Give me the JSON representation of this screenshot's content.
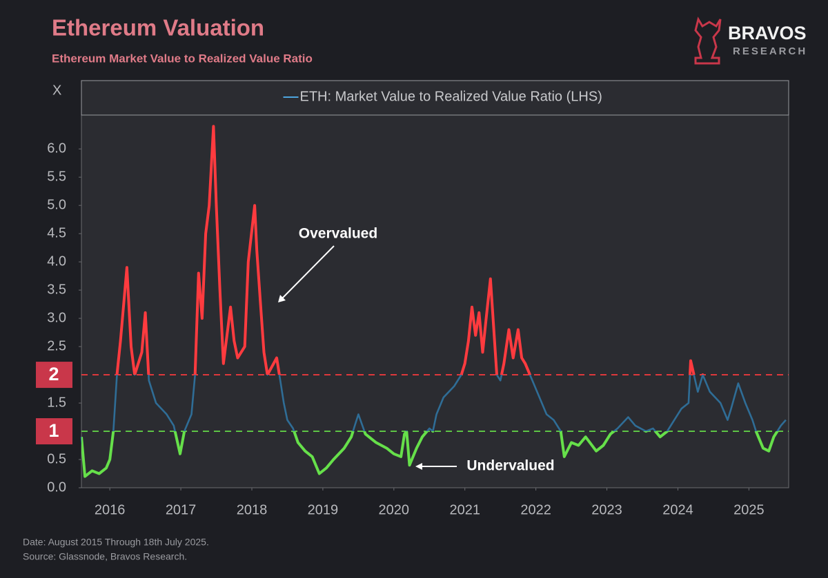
{
  "chart_data": {
    "type": "line",
    "title": "Ethereum Valuation",
    "subtitle": "Ethereum Market Value to Realized Value Ratio",
    "y_axis_label": "X",
    "logo": {
      "name": "BRAVOS",
      "sub": "RESEARCH"
    },
    "notes": [
      "Date: August 2015 Through 18th July 2025.",
      "Source: Glassnode, Bravos Research."
    ],
    "annotations": [
      "Overvalued",
      "Undervalued"
    ],
    "reference_lines": [
      {
        "value": 2,
        "color": "#ff3b3f"
      },
      {
        "value": 1,
        "color": "#66e04a"
      }
    ],
    "xlim": [
      2015.6,
      2025.56
    ],
    "xticks": [
      2016,
      2017,
      2018,
      2019,
      2020,
      2021,
      2022,
      2023,
      2024,
      2025
    ],
    "ylim": [
      0,
      6.6
    ],
    "yticks": [
      {
        "value": 0,
        "label": "0.0"
      },
      0.5,
      1.5,
      2.5,
      {
        "value": 3,
        "label": "3.0"
      },
      3.5,
      {
        "value": 4,
        "label": "4.0"
      },
      4.5,
      {
        "value": 5,
        "label": "5.0"
      },
      5.5,
      {
        "value": 6,
        "label": "6.0"
      }
    ],
    "x": [
      2015.6,
      2015.65,
      2015.75,
      2015.85,
      2015.95,
      2016.0,
      2016.05,
      2016.1,
      2016.15,
      2016.24,
      2016.3,
      2016.35,
      2016.45,
      2016.5,
      2016.55,
      2016.65,
      2016.8,
      2016.9,
      2016.99,
      2017.05,
      2017.15,
      2017.2,
      2017.25,
      2017.3,
      2017.35,
      2017.4,
      2017.46,
      2017.5,
      2017.55,
      2017.6,
      2017.7,
      2017.75,
      2017.8,
      2017.9,
      2017.95,
      2018.04,
      2018.07,
      2018.12,
      2018.17,
      2018.22,
      2018.35,
      2018.4,
      2018.45,
      2018.5,
      2018.58,
      2018.65,
      2018.75,
      2018.85,
      2018.95,
      2019.05,
      2019.15,
      2019.3,
      2019.4,
      2019.45,
      2019.5,
      2019.6,
      2019.75,
      2019.9,
      2020.0,
      2020.1,
      2020.15,
      2020.18,
      2020.22,
      2020.32,
      2020.4,
      2020.5,
      2020.55,
      2020.6,
      2020.7,
      2020.85,
      2020.95,
      2021.0,
      2021.05,
      2021.1,
      2021.15,
      2021.2,
      2021.25,
      2021.3,
      2021.36,
      2021.45,
      2021.5,
      2021.55,
      2021.62,
      2021.68,
      2021.75,
      2021.8,
      2021.85,
      2021.95,
      2022.05,
      2022.15,
      2022.25,
      2022.35,
      2022.4,
      2022.5,
      2022.6,
      2022.7,
      2022.85,
      2022.95,
      2023.05,
      2023.15,
      2023.3,
      2023.4,
      2023.55,
      2023.65,
      2023.75,
      2023.85,
      2023.95,
      2024.05,
      2024.15,
      2024.18,
      2024.28,
      2024.35,
      2024.45,
      2024.6,
      2024.7,
      2024.75,
      2024.85,
      2024.95,
      2025.05,
      2025.1,
      2025.2,
      2025.28,
      2025.35,
      2025.45,
      2025.52
    ],
    "series": [
      {
        "name": "ETH: Market Value to Realized Value Ratio (LHS)",
        "color": "#2f6d96",
        "values": [
          0.9,
          0.2,
          0.3,
          0.25,
          0.35,
          0.5,
          1.0,
          2.0,
          2.6,
          3.9,
          2.5,
          2.0,
          2.4,
          3.1,
          1.9,
          1.5,
          1.3,
          1.1,
          0.6,
          1.0,
          1.3,
          2.0,
          3.8,
          3.0,
          4.5,
          5.0,
          6.4,
          5.0,
          3.5,
          2.2,
          3.2,
          2.6,
          2.3,
          2.5,
          4.0,
          5.0,
          4.2,
          3.3,
          2.4,
          2.0,
          2.3,
          1.9,
          1.5,
          1.2,
          1.05,
          0.8,
          0.65,
          0.55,
          0.25,
          0.35,
          0.5,
          0.7,
          0.9,
          1.1,
          1.3,
          0.95,
          0.8,
          0.7,
          0.6,
          0.55,
          0.95,
          1.0,
          0.4,
          0.7,
          0.9,
          1.05,
          1.0,
          1.3,
          1.6,
          1.8,
          2.0,
          2.2,
          2.6,
          3.2,
          2.7,
          3.1,
          2.4,
          3.0,
          3.7,
          2.0,
          1.9,
          2.2,
          2.8,
          2.3,
          2.8,
          2.3,
          2.2,
          1.9,
          1.6,
          1.3,
          1.2,
          1.0,
          0.55,
          0.8,
          0.75,
          0.9,
          0.65,
          0.75,
          0.95,
          1.05,
          1.25,
          1.1,
          1.0,
          1.05,
          0.9,
          1.0,
          1.2,
          1.4,
          1.5,
          2.25,
          1.7,
          2.0,
          1.7,
          1.5,
          1.2,
          1.4,
          1.85,
          1.5,
          1.2,
          1.0,
          0.7,
          0.65,
          0.9,
          1.1,
          1.2
        ]
      }
    ]
  }
}
